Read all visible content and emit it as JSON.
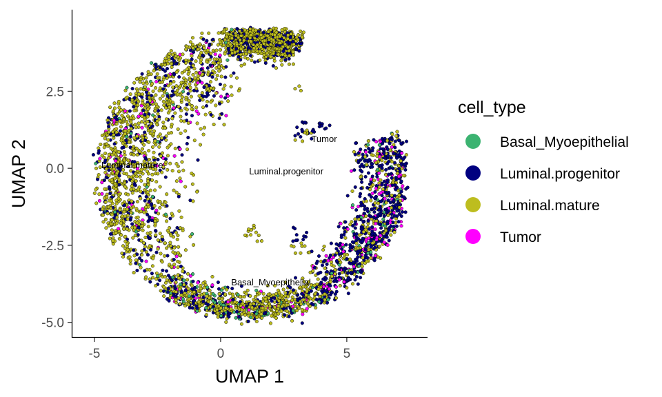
{
  "chart_data": {
    "type": "scatter",
    "title": "",
    "xlabel": "UMAP 1",
    "ylabel": "UMAP 2",
    "xlim": [
      -5.9,
      8.2
    ],
    "ylim": [
      -5.5,
      5.15
    ],
    "xticks": [
      -5,
      0,
      5
    ],
    "xtick_labels": [
      "-5",
      "0",
      "5"
    ],
    "yticks": [
      -5.0,
      -2.5,
      0.0,
      2.5
    ],
    "ytick_labels": [
      "-5.0",
      "-2.5",
      "0.0",
      "2.5"
    ],
    "grid": false,
    "legend": {
      "title": "cell_type",
      "placement": "right",
      "entries": [
        {
          "label": "Basal_Myoepithelial",
          "color": "#3CB371"
        },
        {
          "label": "Luminal.progenitor",
          "color": "#000080"
        },
        {
          "label": "Luminal.mature",
          "color": "#BDBD1F"
        },
        {
          "label": "Tumor",
          "color": "#FF00FF"
        }
      ]
    },
    "annotations": [
      {
        "text": "Luminal.mature",
        "x": -3.5,
        "y": 0.0
      },
      {
        "text": "Luminal.progenitor",
        "x": 2.6,
        "y": -0.2
      },
      {
        "text": "Tumor",
        "x": 4.1,
        "y": 0.85
      },
      {
        "text": "Basal_Myoepithelial",
        "x": 2.0,
        "y": -3.8
      }
    ],
    "series": [
      {
        "name": "Luminal.mature",
        "color": "#BDBD1F",
        "n_points": 2600,
        "region_centers": [
          [
            -3.2,
            1.0
          ],
          [
            -1.5,
            -3.6
          ],
          [
            -0.5,
            3.0
          ]
        ]
      },
      {
        "name": "Luminal.progenitor",
        "color": "#000080",
        "n_points": 1500,
        "region_centers": [
          [
            6.2,
            -0.5
          ],
          [
            4.5,
            2.5
          ],
          [
            -3.0,
            1.5
          ]
        ]
      },
      {
        "name": "Basal_Myoepithelial",
        "color": "#3CB371",
        "n_points": 160,
        "region_centers": [
          [
            1.5,
            -4.3
          ],
          [
            6.5,
            0.5
          ]
        ]
      },
      {
        "name": "Tumor",
        "color": "#FF00FF",
        "n_points": 220,
        "region_centers": [
          [
            6.0,
            1.0
          ],
          [
            -2.5,
            0.5
          ],
          [
            0.5,
            -4.0
          ]
        ]
      }
    ]
  }
}
